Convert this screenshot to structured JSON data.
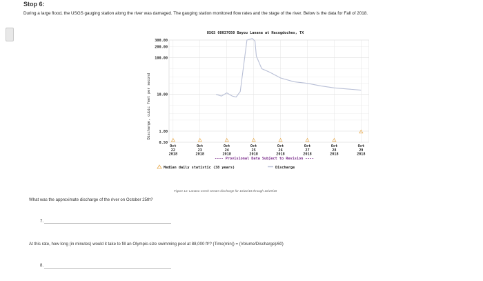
{
  "step_title": "Stop 6:",
  "intro_text": "During a large flood, the USGS gauging station along the river was damaged. The gauging station monitored flow rates and the stage of the river. Below is the data for Fall of 2018.",
  "figure_caption": "Figure 12: Lanana Creek stream discharge for 10/22/18 through 10/29/18",
  "question_7_text": "What was the approximate discharge of the river on October 25th?",
  "question_7_number": "7.",
  "rate_prompt": "At this rate, how long (in minutes) would it take to fill an Olympic-size swimming pool at 88,000 ft³? (Time(min)) = (Volume/Discharge)/60)",
  "question_8_number": "8.",
  "chart_data": {
    "type": "line",
    "title": "USGS 08037050 Bayou Lanana at Nacogdoches, TX",
    "ylabel": "Discharge, cubic feet per second",
    "yscale": "log",
    "ylim": [
      0.5,
      300
    ],
    "y_tick_labels": [
      "300.00",
      "200.00",
      "100.00",
      "10.00",
      "1.00",
      "0.50"
    ],
    "x_tick_labels": [
      "Oct 22 2018",
      "Oct 23 2018",
      "Oct 24 2018",
      "Oct 25 2018",
      "Oct 26 2018",
      "Oct 27 2018",
      "Oct 28 2018",
      "Oct 29 2018"
    ],
    "annotation": "Provisional Data Subject to Revision",
    "legend": [
      "Median daily statistic (38 years)",
      "Discharge"
    ],
    "series": [
      {
        "name": "Discharge",
        "color": "#b8bfd6",
        "x": [
          23.6,
          23.8,
          24.0,
          24.2,
          24.35,
          24.5,
          24.75,
          24.95,
          25.05,
          25.1,
          25.3,
          25.6,
          26.0,
          26.5,
          27.0,
          27.5,
          28.0,
          28.5,
          29.0
        ],
        "y": [
          10,
          9,
          11,
          9,
          8.5,
          12,
          300,
          330,
          280,
          110,
          50,
          40,
          28,
          22,
          20,
          17,
          15,
          14,
          13
        ]
      },
      {
        "name": "Median daily statistic (38 years)",
        "color": "#e8a94a",
        "x": [
          22,
          23,
          24,
          25,
          26,
          27,
          28,
          29
        ],
        "y": [
          0.5,
          0.5,
          0.5,
          0.5,
          0.5,
          0.5,
          0.5,
          0.85
        ]
      }
    ]
  }
}
